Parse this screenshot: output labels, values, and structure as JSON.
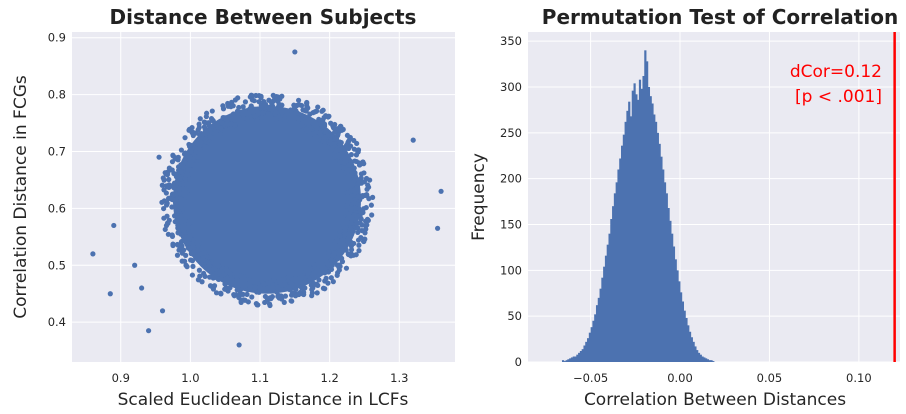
{
  "chart_data": [
    {
      "type": "scatter",
      "title": "Distance Between Subjects",
      "xlabel": "Scaled Euclidean Distance in LCFs",
      "ylabel": "Correlation Distance in FCGs",
      "xlim": [
        0.83,
        1.38
      ],
      "ylim": [
        0.33,
        0.91
      ],
      "xticks": [
        "0.9",
        "1.0",
        "1.1",
        "1.2",
        "1.3"
      ],
      "yticks": [
        "0.4",
        "0.5",
        "0.6",
        "0.7",
        "0.8",
        "0.9"
      ],
      "grid": true,
      "color": "#4c72b0",
      "background": "#eaeaf2",
      "points_core_ellipse": {
        "x_center": 1.11,
        "y_center": 0.615,
        "x_halfwidth": 0.135,
        "y_halfwidth": 0.165
      },
      "outlier_points": [
        {
          "x": 0.86,
          "y": 0.52
        },
        {
          "x": 0.89,
          "y": 0.57
        },
        {
          "x": 0.885,
          "y": 0.45
        },
        {
          "x": 0.93,
          "y": 0.46
        },
        {
          "x": 0.92,
          "y": 0.5
        },
        {
          "x": 0.94,
          "y": 0.385
        },
        {
          "x": 1.07,
          "y": 0.36
        },
        {
          "x": 1.15,
          "y": 0.875
        },
        {
          "x": 1.36,
          "y": 0.63
        },
        {
          "x": 1.355,
          "y": 0.565
        },
        {
          "x": 0.955,
          "y": 0.69
        },
        {
          "x": 0.96,
          "y": 0.42
        },
        {
          "x": 1.32,
          "y": 0.72
        }
      ]
    },
    {
      "type": "bar",
      "title": "Permutation Test of Correlation",
      "xlabel": "Correlation Between Distances",
      "ylabel": "Frequency",
      "xlim": [
        -0.085,
        0.123
      ],
      "ylim": [
        0,
        360
      ],
      "xticks": [
        "−0.05",
        "0.00",
        "0.05",
        "0.10"
      ],
      "yticks": [
        "0",
        "50",
        "100",
        "150",
        "200",
        "250",
        "300",
        "350"
      ],
      "grid": true,
      "color": "#4c72b0",
      "background": "#eaeaf2",
      "histogram": {
        "bin_start": -0.066,
        "bin_width": 0.001,
        "counts": [
          2,
          1,
          2,
          3,
          4,
          5,
          6,
          6,
          8,
          10,
          12,
          14,
          18,
          22,
          26,
          32,
          38,
          45,
          52,
          62,
          70,
          80,
          92,
          104,
          116,
          128,
          140,
          156,
          170,
          184,
          196,
          210,
          222,
          236,
          248,
          262,
          274,
          284,
          268,
          296,
          304,
          292,
          286,
          308,
          298,
          312,
          340,
          328,
          300,
          290,
          282,
          270,
          262,
          250,
          238,
          224,
          210,
          196,
          184,
          168,
          154,
          140,
          126,
          112,
          100,
          88,
          76,
          66,
          56,
          48,
          40,
          33,
          27,
          22,
          17,
          13,
          10,
          8,
          6,
          5,
          4,
          3,
          2,
          2,
          1
        ]
      },
      "reference_line": {
        "x": 0.12,
        "color": "#ff0000"
      },
      "annotation": [
        "dCor=0.12",
        "[p < .001]"
      ]
    }
  ]
}
